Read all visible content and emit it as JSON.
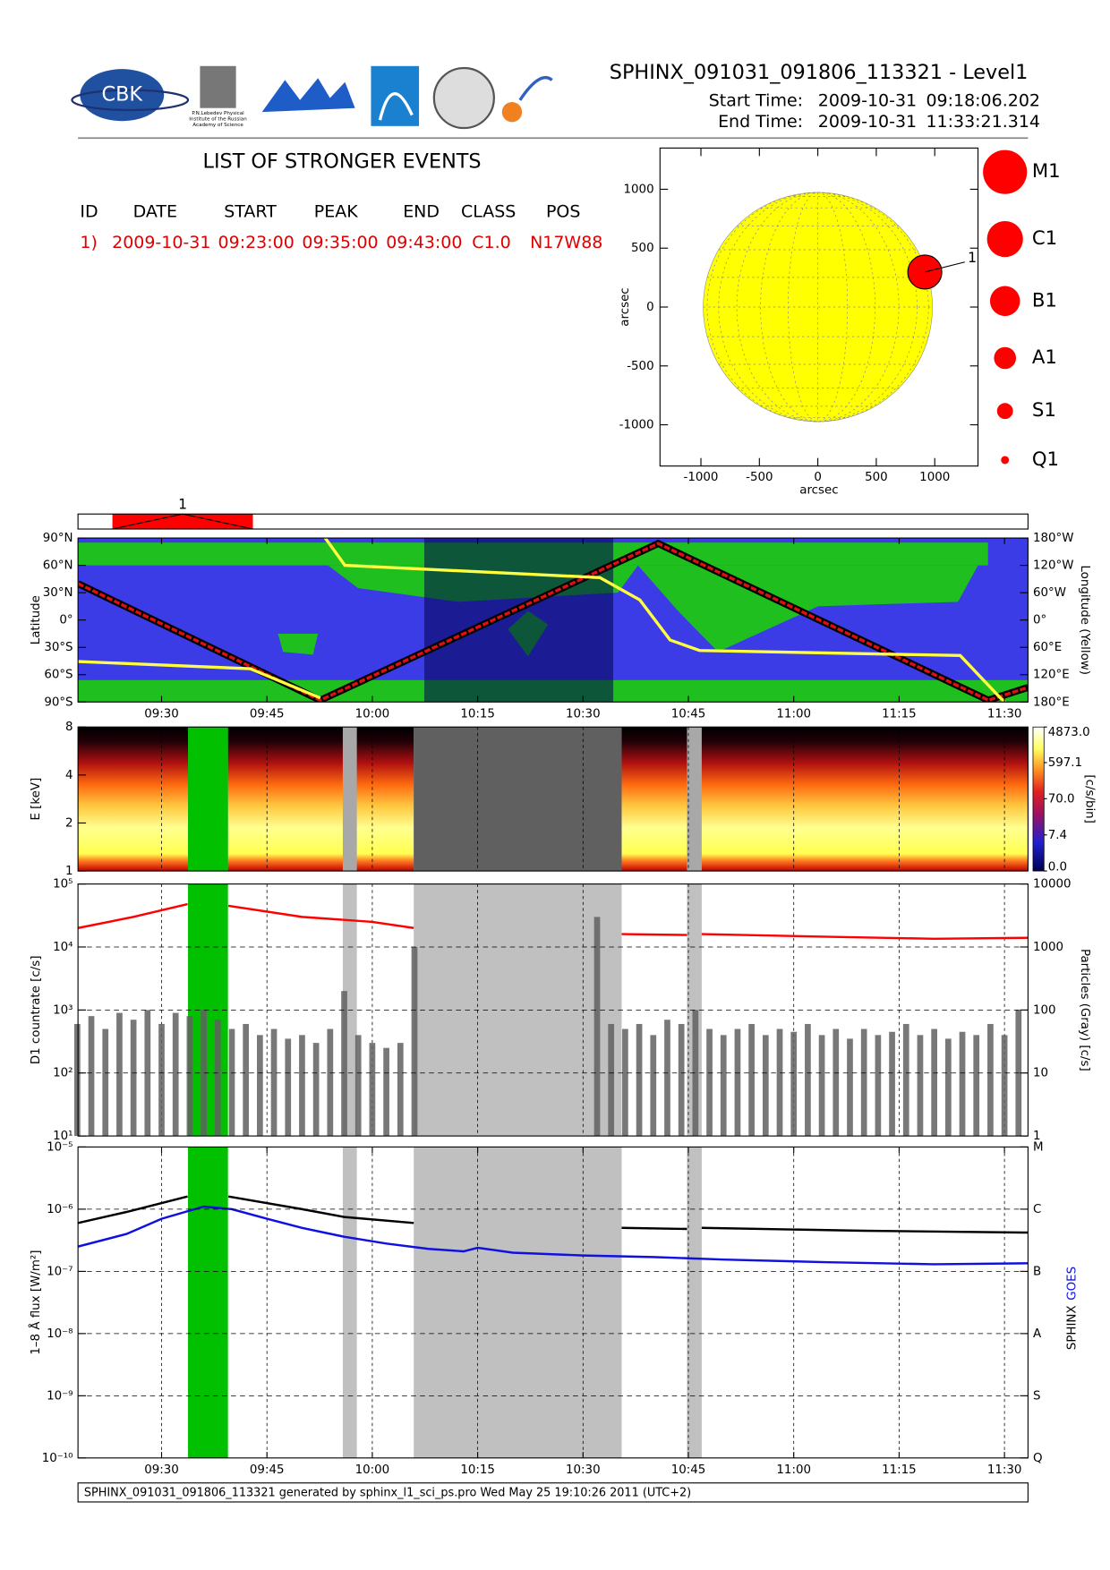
{
  "header": {
    "title": "SPHINX_091031_091806_113321 - Level1",
    "start_label": "Start Time:",
    "start_date": "2009-10-31",
    "start_time": "09:18:06.202",
    "end_label": "End Time:",
    "end_date": "2009-10-31",
    "end_time": "11:33:21.314",
    "logo_text": "CBK",
    "logo_caption": [
      "P.N.Lebedev Physical",
      "Institute of the Russian",
      "Academy of Science"
    ]
  },
  "events": {
    "title": "LIST OF STRONGER EVENTS",
    "columns": [
      "ID",
      "DATE",
      "START",
      "PEAK",
      "END",
      "CLASS",
      "POS"
    ],
    "rows": [
      [
        "1)",
        "2009-10-31",
        "09:23:00",
        "09:35:00",
        "09:43:00",
        "C1.0",
        "N17W88"
      ]
    ]
  },
  "chart_data": [
    {
      "type": "scatter",
      "xlabel": "arcsec",
      "ylabel": "arcsec",
      "xlim": [
        -1350,
        1370
      ],
      "ylim": [
        -1350,
        1350
      ],
      "xticks": [
        -1000,
        -500,
        0,
        500,
        1000
      ],
      "yticks": [
        -1000,
        -500,
        0,
        500,
        1000
      ],
      "disk_radius": 980,
      "disk_color": "#ffff00",
      "series": [
        {
          "x": [
            915
          ],
          "values": [
            297
          ],
          "labels": [
            "1"
          ],
          "color": "#ff0000"
        }
      ],
      "classes": [
        "M1",
        "C1",
        "B1",
        "A1",
        "S1",
        "Q1"
      ]
    },
    {
      "type": "timeline",
      "xlim": [
        558.1,
        693.35
      ],
      "events": [
        {
          "label": "1",
          "start": 563,
          "end": 583
        }
      ],
      "color": "#ff0000"
    },
    {
      "type": "line",
      "ylabel": "Latitude",
      "y2label": "Longitude (Yellow)",
      "xlim": [
        558.1,
        693.35
      ],
      "xticks": [
        {
          "value": 570,
          "label": "09:30"
        },
        {
          "value": 585,
          "label": "09:45"
        },
        {
          "value": 600,
          "label": "10:00"
        },
        {
          "value": 615,
          "label": "10:15"
        },
        {
          "value": 630,
          "label": "10:30"
        },
        {
          "value": 645,
          "label": "10:45"
        },
        {
          "value": 660,
          "label": "11:00"
        },
        {
          "value": 675,
          "label": "11:15"
        },
        {
          "value": 690,
          "label": "11:30"
        }
      ],
      "ylim": [
        -90,
        90
      ],
      "yticks": [
        {
          "value": -90,
          "label": "90°S"
        },
        {
          "value": -60,
          "label": "60°S"
        },
        {
          "value": -30,
          "label": "30°S"
        },
        {
          "value": 0,
          "label": "0°"
        },
        {
          "value": 30,
          "label": "30°N"
        },
        {
          "value": 60,
          "label": "60°N"
        },
        {
          "value": 90,
          "label": "90°N"
        }
      ],
      "y2lim": [
        180,
        -180
      ],
      "y2ticks": [
        {
          "value": -180,
          "label": "180°W"
        },
        {
          "value": -120,
          "label": "120°W"
        },
        {
          "value": -60,
          "label": "60°W"
        },
        {
          "value": 0,
          "label": "0°"
        },
        {
          "value": 60,
          "label": "60°E"
        },
        {
          "value": 120,
          "label": "120°E"
        },
        {
          "value": 180,
          "label": "180°E"
        }
      ],
      "background": "#3c3ce6",
      "land_color": "#1fbf1f",
      "shade": [
        [
          607.4,
          634.3
        ]
      ],
      "shade_color": "#000050",
      "series": [
        {
          "color": "#e01010",
          "x": [
            558.1,
            592.6,
            640.7,
            687.7,
            693.35
          ],
          "values": [
            40,
            -88,
            84,
            -88,
            -74
          ]
        },
        {
          "color": "#ffff40",
          "axis": "y2",
          "x": [
            558.1,
            582.6,
            592.6,
            592.9,
            593.3,
            596.1,
            632.4,
            638.1,
            642.4,
            646.6,
            683.7,
            689.4,
            690.1
          ],
          "values": [
            91,
            107,
            171,
            null,
            -180,
            -120,
            -93,
            -44,
            44,
            67,
            78,
            171,
            180
          ]
        }
      ]
    },
    {
      "type": "heatmap",
      "ylabel": "E [keV]",
      "xlim": [
        558.1,
        693.35
      ],
      "ylim": [
        1,
        8
      ],
      "ylog": true,
      "yticks": [
        1,
        2,
        4,
        8
      ],
      "background": "#a8a8a8",
      "data_spans": [
        [
          558.1,
          573.76
        ],
        [
          579.45,
          595.8
        ],
        [
          597.8,
          605.9
        ],
        [
          635.5,
          644.8
        ],
        [
          646.9,
          693.35
        ]
      ],
      "shade": [
        [
          605.9,
          635.5
        ]
      ],
      "shade_color": "#606060",
      "highlight": [
        573.76,
        579.45
      ],
      "highlight_color": "#00c000",
      "clim": [
        0,
        4873
      ],
      "colorbar_label": "[c/s/bin]",
      "cticks": [
        {
          "value": 0,
          "label": "0.0"
        },
        7.4,
        {
          "value": 70,
          "label": "70.0"
        },
        597.1,
        {
          "value": 4873,
          "label": "4873.0"
        }
      ]
    },
    {
      "type": "line",
      "ylabel": "D1 countrate [c/s]",
      "y2label": "Particles (Gray) [c/s]",
      "xlim": [
        558.1,
        693.35
      ],
      "ylim": [
        10,
        100000
      ],
      "ylog": true,
      "yticks": [
        {
          "value": 10,
          "label": "10¹"
        },
        {
          "value": 100,
          "label": "10²"
        },
        {
          "value": 1000,
          "label": "10³"
        },
        {
          "value": 10000,
          "label": "10⁴"
        },
        {
          "value": 100000,
          "label": "10⁵"
        }
      ],
      "y2lim": [
        1,
        10000
      ],
      "y2log": true,
      "y2ticks": [
        1,
        10,
        100,
        1000,
        10000
      ],
      "shade": [
        [
          595.8,
          597.8
        ],
        [
          605.9,
          635.5
        ],
        [
          644.8,
          646.9
        ]
      ],
      "shade_color": "#c0c0c0",
      "highlight": [
        573.76,
        579.45
      ],
      "highlight_color": "#00c000",
      "series": [
        {
          "color": "#606060",
          "axis": "y2",
          "type": "bar",
          "x": [
            558,
            560,
            562,
            564,
            566,
            568,
            570,
            572,
            574,
            576,
            578,
            580,
            582,
            584,
            586,
            588,
            590,
            592,
            594,
            596,
            598,
            600,
            602,
            604,
            606,
            608,
            632,
            634,
            636,
            638,
            640,
            642,
            644,
            646,
            648,
            650,
            652,
            654,
            656,
            658,
            660,
            662,
            664,
            666,
            668,
            670,
            672,
            674,
            676,
            678,
            680,
            682,
            684,
            686,
            688,
            690,
            692
          ],
          "values": [
            60,
            80,
            50,
            90,
            70,
            100,
            60,
            90,
            80,
            100,
            70,
            50,
            60,
            40,
            50,
            35,
            40,
            30,
            50,
            200,
            40,
            30,
            25,
            30,
            1000,
            null,
            3000,
            60,
            50,
            60,
            40,
            70,
            60,
            100,
            50,
            40,
            50,
            60,
            40,
            50,
            45,
            60,
            40,
            50,
            35,
            50,
            40,
            45,
            60,
            40,
            50,
            35,
            45,
            40,
            60,
            40,
            100
          ]
        },
        {
          "color": "#ff0000",
          "x": [
            558.1,
            566,
            573.7,
            576.5,
            579.5,
            590,
            600,
            605.9,
            620,
            635.5,
            644.8,
            645.8,
            646.9,
            665,
            680,
            693.35
          ],
          "values": [
            20000,
            30000,
            48000,
            null,
            45000,
            30000,
            25000,
            20000,
            null,
            16000,
            15500,
            null,
            16000,
            14500,
            13500,
            14000
          ]
        }
      ]
    },
    {
      "type": "line",
      "ylabel": "1–8 Å flux [W/m²]",
      "xlim": [
        558.1,
        693.35
      ],
      "xticks": [
        {
          "value": 570,
          "label": "09:30"
        },
        {
          "value": 585,
          "label": "09:45"
        },
        {
          "value": 600,
          "label": "10:00"
        },
        {
          "value": 615,
          "label": "10:15"
        },
        {
          "value": 630,
          "label": "10:30"
        },
        {
          "value": 645,
          "label": "10:45"
        },
        {
          "value": 660,
          "label": "11:00"
        },
        {
          "value": 675,
          "label": "11:15"
        },
        {
          "value": 690,
          "label": "11:30"
        }
      ],
      "ylim": [
        1e-10,
        1e-05
      ],
      "ylog": true,
      "yticks": [
        {
          "value": 1e-10,
          "label": "10⁻¹⁰"
        },
        {
          "value": 1e-09,
          "label": "10⁻⁹"
        },
        {
          "value": 1e-08,
          "label": "10⁻⁸"
        },
        {
          "value": 1e-07,
          "label": "10⁻⁷"
        },
        {
          "value": 1e-06,
          "label": "10⁻⁶"
        },
        {
          "value": 1e-05,
          "label": "10⁻⁵"
        }
      ],
      "y2ticks": [
        {
          "value": 1e-10,
          "label": "Q"
        },
        {
          "value": 1e-09,
          "label": "S"
        },
        {
          "value": 1e-08,
          "label": "A"
        },
        {
          "value": 1e-07,
          "label": "B"
        },
        {
          "value": 1e-06,
          "label": "C"
        },
        {
          "value": 1e-05,
          "label": "M"
        }
      ],
      "shade": [
        [
          595.8,
          597.8
        ],
        [
          605.9,
          635.5
        ],
        [
          644.8,
          646.9
        ]
      ],
      "shade_color": "#c0c0c0",
      "highlight": [
        573.76,
        579.45
      ],
      "highlight_color": "#00c000",
      "series": [
        {
          "name": "SPHINX",
          "color": "#000000",
          "x": [
            558.1,
            565,
            573.7,
            576.5,
            579.5,
            590,
            596,
            605.9,
            620,
            635.5,
            644.8,
            645.8,
            646.9,
            670,
            693.35
          ],
          "values": [
            6e-07,
            9e-07,
            1.6e-06,
            null,
            1.6e-06,
            1e-06,
            7.5e-07,
            6e-07,
            null,
            5e-07,
            4.8e-07,
            null,
            5e-07,
            4.5e-07,
            4.2e-07
          ]
        },
        {
          "name": "GOES",
          "color": "#1010e0",
          "x": [
            558.1,
            565,
            570,
            576,
            580,
            585,
            590,
            596,
            602,
            608,
            613,
            615,
            620,
            630,
            640,
            650,
            665,
            680,
            693.35
          ],
          "values": [
            2.5e-07,
            4e-07,
            7e-07,
            1.1e-06,
            1e-06,
            7e-07,
            5e-07,
            3.6e-07,
            2.8e-07,
            2.3e-07,
            2.1e-07,
            2.4e-07,
            2e-07,
            1.8e-07,
            1.7e-07,
            1.55e-07,
            1.4e-07,
            1.3e-07,
            1.35e-07
          ]
        }
      ]
    }
  ],
  "footer": "SPHINX_091031_091806_113321 generated by sphinx_l1_sci_ps.pro Wed May 25 19:10:26 2011 (UTC+2)"
}
